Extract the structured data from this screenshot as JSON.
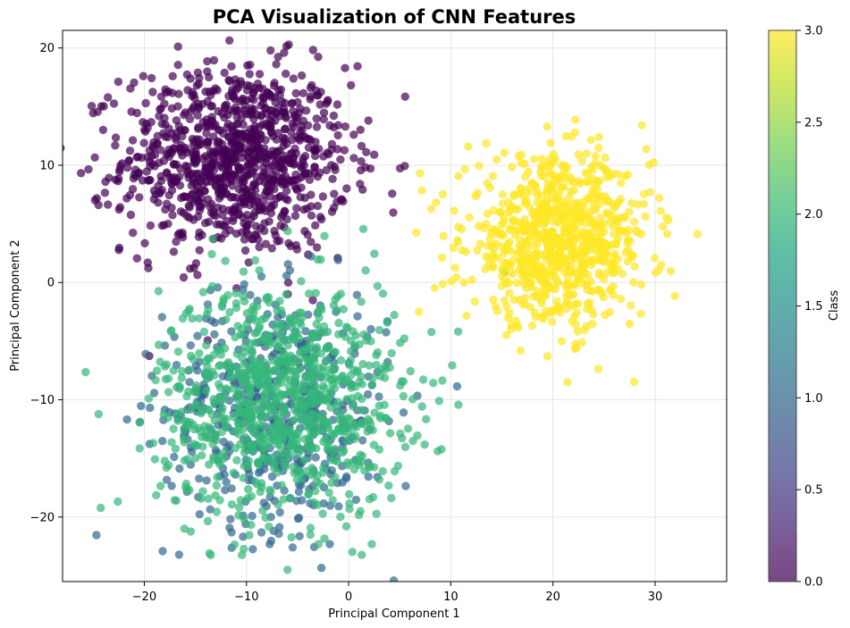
{
  "chart_data": {
    "type": "scatter",
    "title": "PCA Visualization of CNN Features",
    "xlabel": "Principal Component 1",
    "ylabel": "Principal Component 2",
    "xlim": [
      -28,
      37
    ],
    "ylim": [
      -25.5,
      21.5
    ],
    "x_ticks": [
      -20,
      -10,
      0,
      10,
      20,
      30
    ],
    "y_ticks": [
      -20,
      -10,
      0,
      10,
      20
    ],
    "grid": true,
    "marker_alpha": 0.7,
    "colormap": "viridis",
    "colorbar": {
      "label": "Class",
      "range": [
        0.0,
        3.0
      ],
      "ticks": [
        "0.0",
        "0.5",
        "1.0",
        "1.5",
        "2.0",
        "2.5",
        "3.0"
      ]
    },
    "series": [
      {
        "class": 0,
        "color": "#440154",
        "points": 1000,
        "center": [
          -11,
          10.5
        ],
        "std": [
          5.5,
          4.0
        ]
      },
      {
        "class": 1,
        "color": "#31688e",
        "points": 500,
        "center": [
          -7,
          -11
        ],
        "std": [
          5.5,
          5.0
        ]
      },
      {
        "class": 2,
        "color": "#35b779",
        "points": 900,
        "center": [
          -6.5,
          -10
        ],
        "std": [
          6.0,
          5.0
        ]
      },
      {
        "class": 3,
        "color": "#fde725",
        "points": 800,
        "center": [
          20.5,
          3.5
        ],
        "std": [
          4.5,
          3.5
        ]
      }
    ]
  }
}
